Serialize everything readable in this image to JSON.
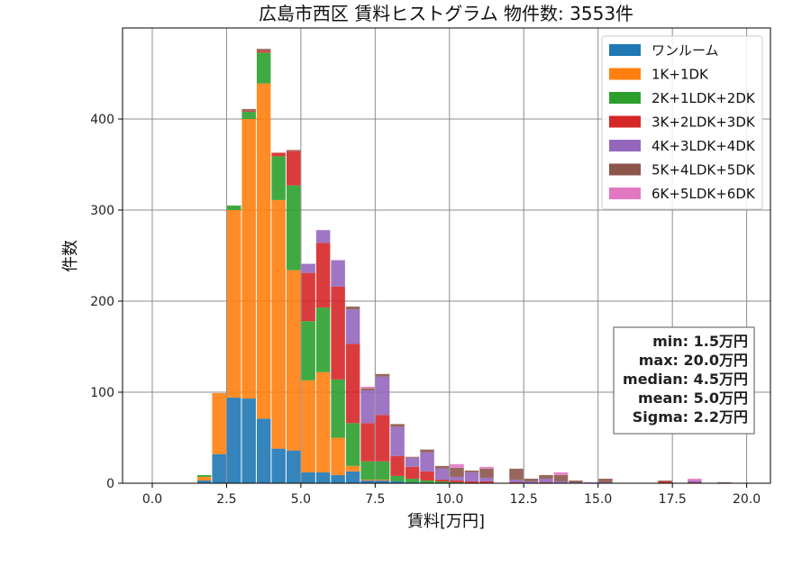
{
  "chart_data": {
    "type": "bar",
    "stacked": true,
    "title": "広島市西区 賃料ヒストグラム 物件数: 3553件",
    "xlabel": "賃料[万円]",
    "ylabel": "件数",
    "xlim": [
      -1.0,
      20.8
    ],
    "ylim": [
      0,
      500
    ],
    "xticks": [
      0.0,
      2.5,
      5.0,
      7.5,
      10.0,
      12.5,
      15.0,
      17.5,
      20.0
    ],
    "xtick_labels": [
      "0.0",
      "2.5",
      "5.0",
      "7.5",
      "10.0",
      "12.5",
      "15.0",
      "17.5",
      "20.0"
    ],
    "yticks": [
      0,
      100,
      200,
      300,
      400
    ],
    "ytick_labels": [
      "0",
      "100",
      "200",
      "300",
      "400"
    ],
    "grid": true,
    "legend_position": "top-right",
    "bin_width": 0.5,
    "bin_starts": [
      1.5,
      2.0,
      2.5,
      3.0,
      3.5,
      4.0,
      4.5,
      5.0,
      5.5,
      6.0,
      6.5,
      7.0,
      7.5,
      8.0,
      8.5,
      9.0,
      9.5,
      10.0,
      10.5,
      11.0,
      11.5,
      12.0,
      12.5,
      13.0,
      13.5,
      14.0,
      14.5,
      15.0,
      15.5,
      16.0,
      16.5,
      17.0,
      17.5,
      18.0,
      18.5,
      19.0,
      19.5
    ],
    "series": [
      {
        "name": "ワンルーム",
        "color": "#1f77b4",
        "values": [
          3,
          32,
          94,
          93,
          71,
          38,
          36,
          12,
          12,
          9,
          13,
          3,
          3,
          2,
          1,
          0,
          0,
          0,
          0,
          0,
          0,
          0,
          0,
          0,
          0,
          0,
          0,
          0,
          0,
          0,
          0,
          0,
          0,
          0,
          0,
          0,
          0
        ]
      },
      {
        "name": "1K+1DK",
        "color": "#ff7f0e",
        "values": [
          4,
          67,
          206,
          307,
          368,
          273,
          198,
          101,
          110,
          41,
          6,
          1,
          1,
          0,
          0,
          0,
          0,
          0,
          0,
          0,
          0,
          0,
          0,
          0,
          0,
          0,
          0,
          0,
          0,
          0,
          0,
          0,
          0,
          0,
          0,
          0,
          0
        ]
      },
      {
        "name": "2K+1LDK+2DK",
        "color": "#2ca02c",
        "values": [
          2,
          0,
          5,
          8,
          34,
          48,
          93,
          65,
          71,
          64,
          47,
          20,
          20,
          6,
          4,
          3,
          2,
          1,
          0,
          0,
          0,
          0,
          0,
          0,
          0,
          0,
          0,
          0,
          0,
          0,
          0,
          0,
          0,
          0,
          0,
          0,
          0
        ]
      },
      {
        "name": "3K+2LDK+3DK",
        "color": "#d62728",
        "values": [
          0,
          0,
          0,
          1,
          2,
          4,
          38,
          53,
          71,
          102,
          87,
          42,
          51,
          22,
          13,
          10,
          2,
          2,
          2,
          2,
          0,
          1,
          0,
          1,
          0,
          0,
          0,
          0,
          0,
          0,
          0,
          2,
          0,
          1,
          0,
          0,
          0
        ]
      },
      {
        "name": "4K+3LDK+4DK",
        "color": "#9467bd",
        "values": [
          0,
          0,
          0,
          0,
          0,
          0,
          0,
          10,
          14,
          29,
          38,
          36,
          42,
          32,
          10,
          21,
          12,
          4,
          10,
          4,
          0,
          3,
          2,
          4,
          2,
          1,
          1,
          1,
          0,
          0,
          0,
          0,
          0,
          2,
          0,
          0,
          0
        ]
      },
      {
        "name": "5K+4LDK+5DK",
        "color": "#8c564b",
        "values": [
          0,
          0,
          0,
          2,
          2,
          0,
          1,
          0,
          0,
          0,
          3,
          2,
          3,
          3,
          1,
          3,
          3,
          10,
          2,
          10,
          0,
          12,
          3,
          4,
          7,
          2,
          0,
          4,
          0,
          0,
          0,
          1,
          0,
          0,
          0,
          1,
          0
        ]
      },
      {
        "name": "6K+5LDK+6DK",
        "color": "#e377c2",
        "values": [
          0,
          0,
          0,
          0,
          0,
          0,
          0,
          0,
          0,
          0,
          0,
          2,
          0,
          0,
          0,
          0,
          0,
          4,
          0,
          2,
          0,
          0,
          0,
          0,
          3,
          0,
          0,
          0,
          0,
          0,
          0,
          0,
          0,
          2,
          0,
          0,
          0
        ]
      }
    ],
    "stats": [
      "min: 1.5万円",
      "max: 20.0万円",
      "median: 4.5万円",
      "mean: 5.0万円",
      "Sigma: 2.2万円"
    ]
  }
}
